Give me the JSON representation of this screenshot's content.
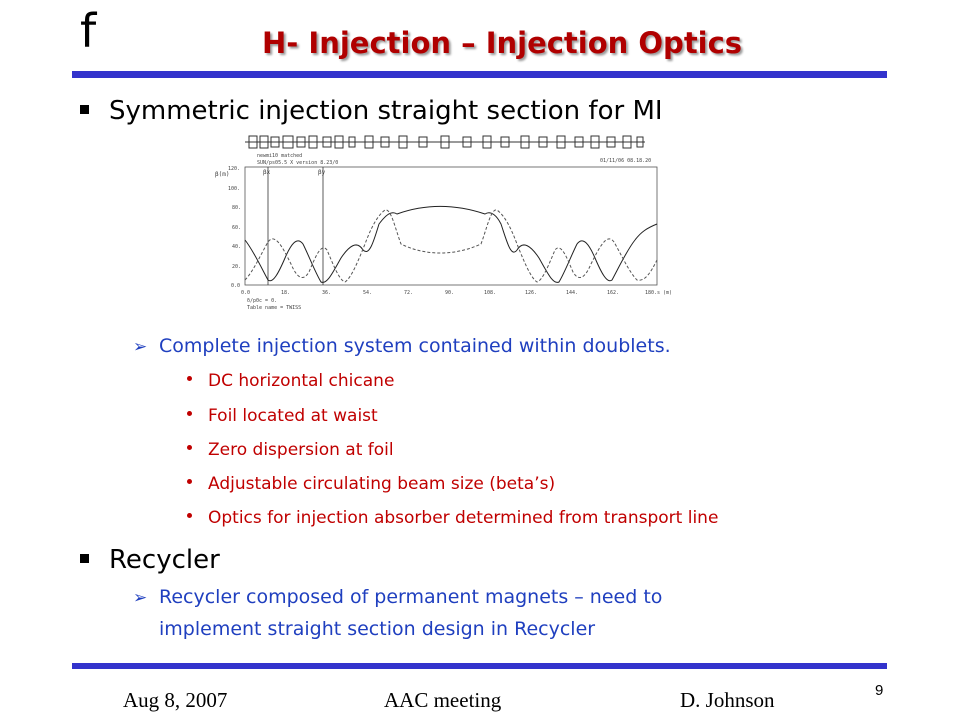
{
  "header": {
    "logo_text": "f",
    "title": "H- Injection  – Injection Optics",
    "title_color": "#b00000",
    "rule_color": "#3333cc"
  },
  "bullets": [
    {
      "text": "Symmetric injection straight section for MI",
      "sub": {
        "text": "Complete injection system contained within doublets.",
        "items": [
          "DC horizontal chicane",
          "Foil located at waist",
          "Zero dispersion at foil",
          "Adjustable circulating beam size (beta’s)",
          "Optics for injection absorber determined from transport line"
        ]
      }
    },
    {
      "text": "Recycler",
      "sub": {
        "lines": [
          "Recycler composed of permanent magnets – need to",
          "implement straight section design in Recycler"
        ]
      }
    }
  ],
  "plot": {
    "header_lines": [
      "newmi10 matched",
      "SUN/ps05.5 X version 8.23/0",
      "Table name = TWISS"
    ],
    "date": "01/11/06  08.18.20",
    "y_unit": "β(m)",
    "x_unit": "s (m)",
    "beta_x_label": "βx",
    "beta_y_label": "βy",
    "footer_lines": [
      "δ/p0c = 0.",
      "Table name = TWISS"
    ],
    "x_ticks": [
      "0.0",
      "18.",
      "36.",
      "54.",
      "72.",
      "90.",
      "108.",
      "126.",
      "144.",
      "162.",
      "180."
    ],
    "y_ticks": [
      "0.0",
      "20.",
      "40.",
      "60.",
      "80.",
      "100.",
      "120."
    ]
  },
  "footer": {
    "date": "Aug 8, 2007",
    "meeting": "AAC meeting",
    "author": "D. Johnson",
    "page": "9"
  }
}
